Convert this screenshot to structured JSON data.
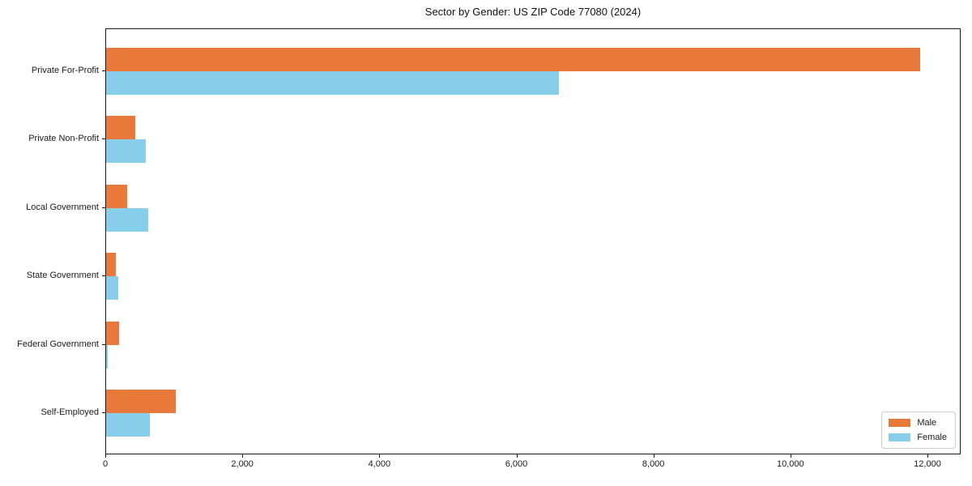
{
  "page": {
    "title": "Sector by Gender: US ZIP Code 77080 (2024)"
  },
  "chart_data": {
    "type": "bar",
    "orientation": "horizontal",
    "title": "Sector by Gender: US ZIP Code 77080 (2024)",
    "categories": [
      "Private For-Profit",
      "Private Non-Profit",
      "Local Government",
      "State Government",
      "Federal Government",
      "Self-Employed"
    ],
    "series": [
      {
        "name": "Male",
        "color": "#E8793B",
        "values": [
          11880,
          430,
          310,
          140,
          185,
          1020
        ]
      },
      {
        "name": "Female",
        "color": "#87CEEB",
        "values": [
          6610,
          580,
          610,
          175,
          25,
          640
        ]
      }
    ],
    "xlabel": "",
    "ylabel": "",
    "x_ticks": [
      0,
      2000,
      4000,
      6000,
      8000,
      10000,
      12000
    ],
    "x_tick_labels": [
      "0",
      "2,000",
      "4,000",
      "6,000",
      "8,000",
      "10,000",
      "12,000"
    ],
    "xlim": [
      0,
      12480
    ],
    "grid": false,
    "legend": {
      "position": "lower right",
      "entries": [
        "Male",
        "Female"
      ]
    }
  }
}
